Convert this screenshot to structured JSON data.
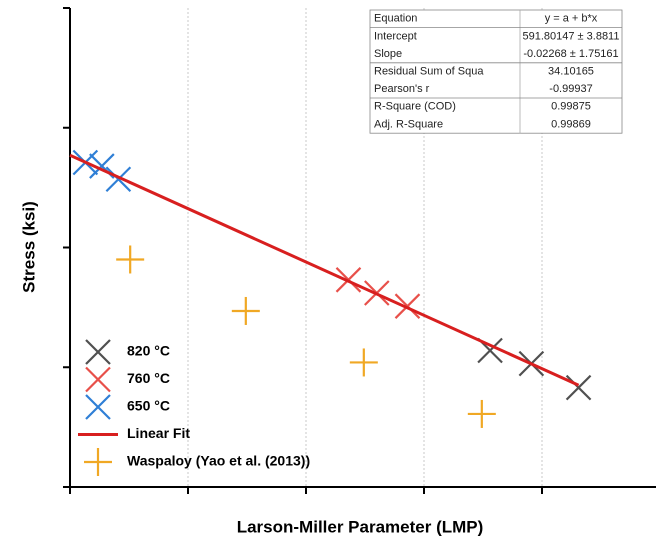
{
  "chart_data": {
    "type": "scatter",
    "x_label": "Larson-Miller Parameter (LMP)",
    "y_label": "Stress (ksi)",
    "xlim": [
      0,
      5
    ],
    "xticks": [
      0,
      1,
      2,
      3,
      4
    ],
    "ylim": [
      0,
      4
    ],
    "yticks": [
      0,
      1,
      2,
      3,
      4
    ],
    "grid": true,
    "legend": "lower left",
    "series": [
      {
        "name": "820 °C",
        "color": "#505050",
        "marker": "x",
        "x": [
          3.56,
          3.91,
          4.31
        ],
        "values": [
          1.14,
          1.03,
          0.83
        ]
      },
      {
        "name": "760 °C",
        "color": "#e8504a",
        "marker": "x",
        "x": [
          2.36,
          2.6,
          2.86
        ],
        "values": [
          1.73,
          1.62,
          1.51
        ]
      },
      {
        "name": "650 °C",
        "color": "#2f7fd6",
        "marker": "x",
        "x": [
          0.13,
          0.27,
          0.41
        ],
        "values": [
          2.71,
          2.68,
          2.57
        ]
      },
      {
        "name": "Linear Fit",
        "color": "#d81f1f",
        "marker": "line",
        "x": [
          0,
          4.31
        ],
        "values": [
          2.77,
          0.85
        ]
      },
      {
        "name": "Waspaloy (Yao et al. (2013))",
        "color": "#f0a824",
        "marker": "+",
        "x": [
          0.51,
          1.49,
          2.49,
          3.49
        ],
        "values": [
          1.9,
          1.47,
          1.04,
          0.61
        ]
      }
    ],
    "fit_table": {
      "header": [
        "Equation",
        "y = a + b*x"
      ],
      "rows": [
        [
          "Intercept",
          "591.80147 ± 3.8811"
        ],
        [
          "Slope",
          "-0.02268 ± 1.75161"
        ],
        [
          "Residual Sum of Squa",
          "34.10165"
        ],
        [
          "Pearson's r",
          "-0.99937"
        ],
        [
          "R-Square (COD)",
          "0.99875"
        ],
        [
          "Adj. R-Square",
          "0.99869"
        ]
      ]
    }
  }
}
